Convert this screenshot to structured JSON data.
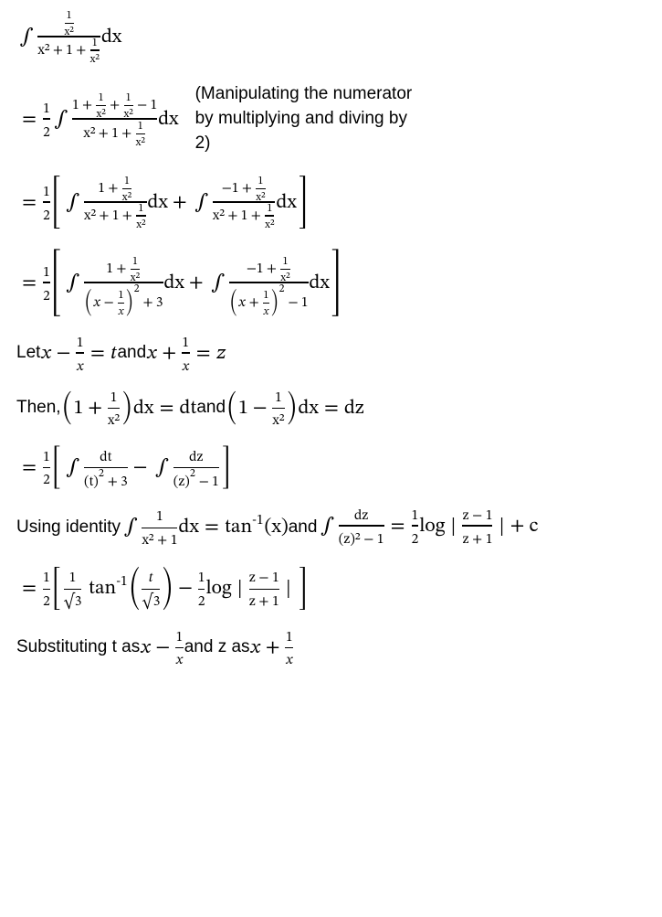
{
  "eq1": {
    "integrand_num": "1",
    "integrand_num_denom": "x²",
    "denom_left": "x²",
    "denom_mid": "1",
    "denom_right_num": "1",
    "denom_right_denom": "x²",
    "dx": "dx"
  },
  "annotation": "(Manipulating the numerator by multiplying and diving by 2)",
  "eq2": {
    "lead_frac_num": "1",
    "lead_frac_den": "2",
    "num_a": "1",
    "num_b_num": "1",
    "num_b_den": "x²",
    "num_c_num": "1",
    "num_c_den": "x²",
    "num_d": "1",
    "den_a": "x²",
    "den_b": "1",
    "den_c_num": "1",
    "den_c_den": "x²",
    "dx": "dx"
  },
  "eq3": {
    "lead_num": "1",
    "lead_den": "2",
    "t1_num_a": "1",
    "t1_num_b_num": "1",
    "t1_num_b_den": "x²",
    "t1_den_a": "x²",
    "t1_den_b": "1",
    "t1_den_c_num": "1",
    "t1_den_c_den": "x²",
    "t2_num_a": "−1",
    "t2_num_b_num": "1",
    "t2_num_b_den": "x²",
    "dx": "dx"
  },
  "eq4": {
    "lead_num": "1",
    "lead_den": "2",
    "t1_num_a": "1",
    "t1_num_b_num": "1",
    "t1_num_b_den": "x²",
    "t1_den_inner_a": "x",
    "t1_den_inner_b_num": "1",
    "t1_den_inner_b_den": "x",
    "t1_den_exp": "2",
    "t1_den_const": "3",
    "t2_num_a": "−1",
    "t2_num_b_num": "1",
    "t2_num_b_den": "x²",
    "t2_den_inner_a": "x",
    "t2_den_inner_b_num": "1",
    "t2_den_inner_b_den": "x",
    "t2_den_exp": "2",
    "t2_den_const": "1",
    "dx": "dx"
  },
  "let_line": {
    "pre": "Let ",
    "a1": "x",
    "a2_num": "1",
    "a2_den": "x",
    "a_rhs": "t",
    "mid": " and ",
    "b1": "x",
    "b2_num": "1",
    "b2_den": "x",
    "b_rhs": "z"
  },
  "then_line": {
    "pre": "Then, ",
    "a_num": "1",
    "a_den": "x²",
    "a_rhs": "dt",
    "mid": " and ",
    "b_num": "1",
    "b_den": "x²",
    "b_rhs": "dz",
    "dx": "dx"
  },
  "eq5": {
    "lead_num": "1",
    "lead_den": "2",
    "t1_dv": "dt",
    "t1_den_base": "(t)",
    "t1_den_exp": "2",
    "t1_den_const": "3",
    "t2_dv": "dz",
    "t2_den_base": "(z)",
    "t2_den_exp": "2",
    "t2_den_const": "1"
  },
  "identity_line": {
    "pre": "Using identity ",
    "id1_num": "1",
    "id1_den": "x² + 1",
    "id1_dx": "dx",
    "id1_rhs_fn": "tan",
    "id1_rhs_arg": "(x)",
    "mid": " and ",
    "id2_num": "dz",
    "id2_den": "(z)² − 1",
    "id2_rhs_frac_num": "1",
    "id2_rhs_frac_den": "2",
    "id2_rhs_log": "log",
    "id2_abs_num": "z − 1",
    "id2_abs_den": "z + 1",
    "id2_tail": " + c"
  },
  "eq6": {
    "lead_num": "1",
    "lead_den": "2",
    "a_num": "1",
    "a_den": "√3",
    "tan": "tan",
    "tan_arg_num": "t",
    "tan_arg_den": "√3",
    "minus_frac_num": "1",
    "minus_frac_den": "2",
    "log": "log",
    "abs_num": "z − 1",
    "abs_den": "z + 1"
  },
  "subst_line": {
    "pre": "Substituting t as ",
    "a1": "x",
    "a2_num": "1",
    "a2_den": "x",
    "mid": " and z as ",
    "b1": "x",
    "b2_num": "1",
    "b2_den": "x"
  }
}
